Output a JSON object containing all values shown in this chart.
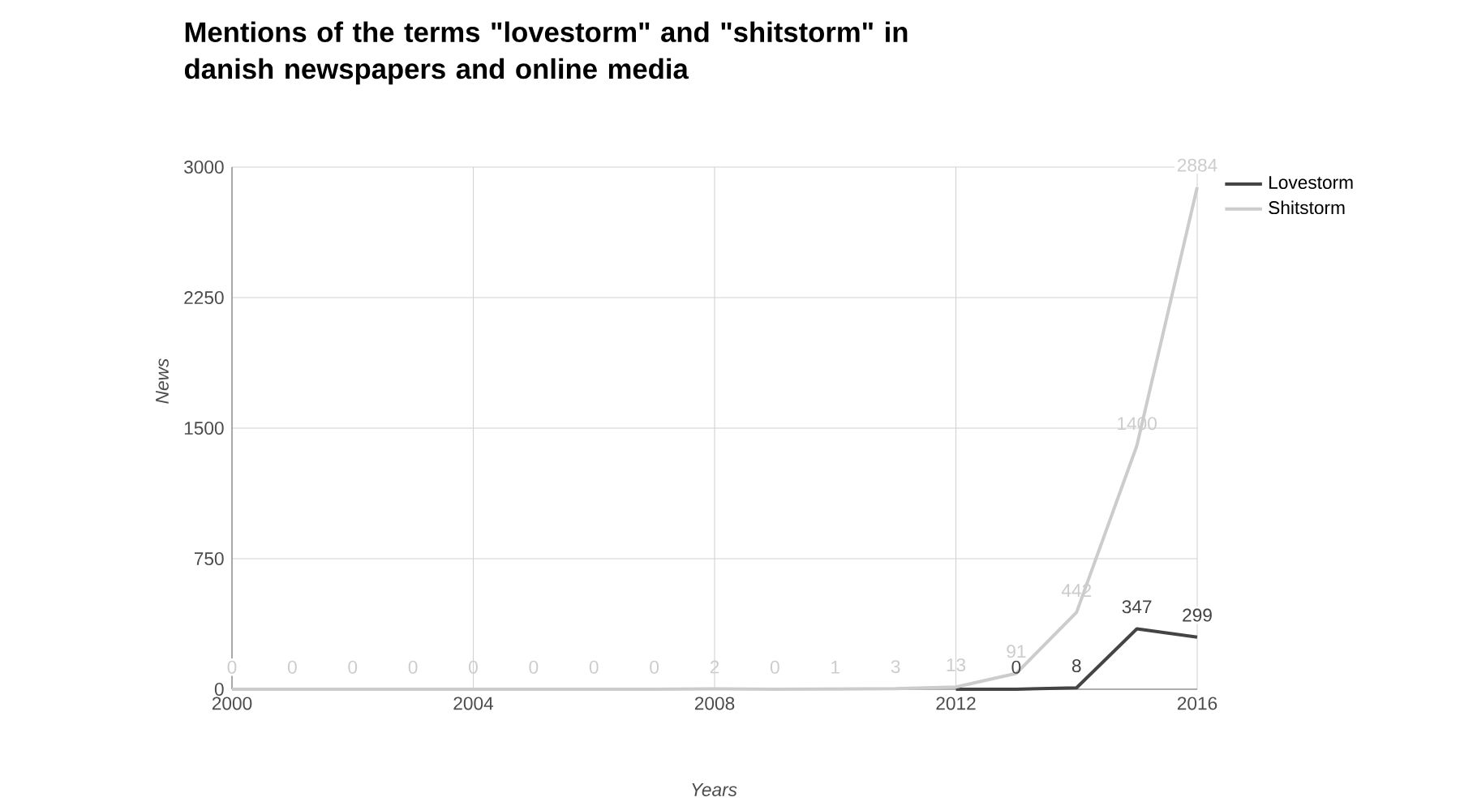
{
  "chart_data": {
    "type": "line",
    "title": "Mentions of the terms \"lovestorm\" and \"shitstorm\" in danish newspapers and online media",
    "xlabel": "Years",
    "ylabel": "News",
    "xlim": [
      2000,
      2016
    ],
    "xticks": [
      2000,
      2004,
      2008,
      2012,
      2016
    ],
    "ylim": [
      0,
      3000
    ],
    "yticks": [
      0,
      750,
      1500,
      2250,
      3000
    ],
    "grid": true,
    "legend": "top right",
    "series": [
      {
        "name": "Lovestorm",
        "color": "#444444",
        "x": [
          2012,
          2013,
          2014,
          2015,
          2016
        ],
        "values": [
          0,
          0,
          8,
          347,
          299
        ],
        "value_labels": [
          null,
          "0",
          "8",
          "347",
          "299"
        ]
      },
      {
        "name": "Shitstorm",
        "color": "#cccccc",
        "x": [
          2000,
          2001,
          2002,
          2003,
          2004,
          2005,
          2006,
          2007,
          2008,
          2009,
          2010,
          2011,
          2012,
          2013,
          2014,
          2015,
          2016
        ],
        "values": [
          0,
          0,
          0,
          0,
          0,
          0,
          0,
          0,
          2,
          0,
          1,
          3,
          13,
          91,
          442,
          1400,
          2884
        ],
        "value_labels": [
          "0",
          "0",
          "0",
          "0",
          "0",
          "0",
          "0",
          "0",
          "2",
          "0",
          "1",
          "3",
          "13",
          "91",
          "442",
          "1400",
          "2884"
        ]
      }
    ]
  }
}
